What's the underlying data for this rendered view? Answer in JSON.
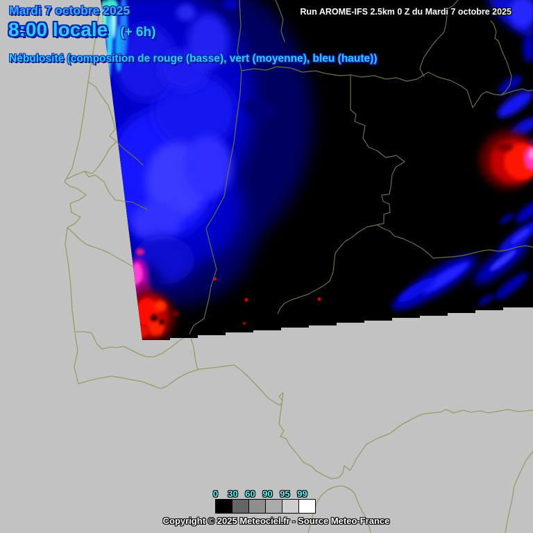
{
  "header": {
    "date": "Mardi 7 octobre 2025",
    "time": "8:00 locale",
    "offset": "(+ 6h)",
    "run_info": "Run AROME-IFS 2.5km 0 Z du Mardi 7 octobre 2025",
    "subtitle": "Nébulosité (composition de rouge (basse), vert (moyenne), bleu (haute))"
  },
  "legend": {
    "values": [
      "0",
      "30",
      "60",
      "90",
      "95",
      "99"
    ],
    "colors": [
      "#000000",
      "#646464",
      "#8e8e8e",
      "#ababab",
      "#cecece",
      "#ffffff"
    ],
    "label_color": "#58ffff"
  },
  "footer": {
    "copyright": "Copyright © 2025 Meteociel.fr - Source Meteo-France"
  },
  "map": {
    "sea_color": "#c2c2c2",
    "border_color": "#9a9a66",
    "domain_fill": "#000000",
    "accent_title_blue": "#35c8ff",
    "cloud_palette": [
      "#0000c8",
      "#1f1fff",
      "#3a3aff",
      "#00c8ff",
      "#70ffd8",
      "#ff1200",
      "#8a0000",
      "#ff38b8",
      "#cc00b8"
    ]
  }
}
